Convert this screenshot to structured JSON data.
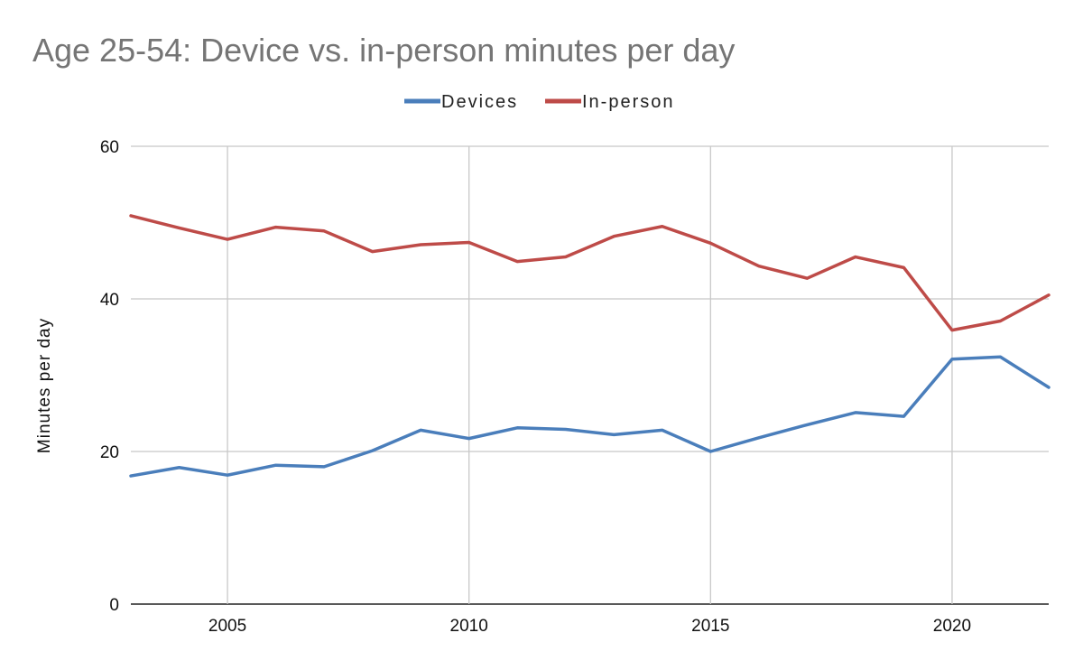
{
  "chart_data": {
    "type": "line",
    "title": "Age 25-54: Device vs. in-person minutes per day",
    "xlabel": "",
    "ylabel": "Minutes per day",
    "xlim": [
      2003,
      2022
    ],
    "ylim": [
      0,
      60
    ],
    "x_ticks": [
      2005,
      2010,
      2015,
      2020
    ],
    "y_ticks": [
      0,
      20,
      40,
      60
    ],
    "grid": true,
    "legend_position": "top-center",
    "x": [
      2003,
      2004,
      2005,
      2006,
      2007,
      2008,
      2009,
      2010,
      2011,
      2012,
      2013,
      2014,
      2015,
      2016,
      2017,
      2018,
      2019,
      2020,
      2021,
      2022
    ],
    "series": [
      {
        "name": "Devices",
        "color": "#4a7ebb",
        "values": [
          16.8,
          17.9,
          16.9,
          18.2,
          18.0,
          20.1,
          22.8,
          21.7,
          23.1,
          22.9,
          22.2,
          22.8,
          20.0,
          21.8,
          23.5,
          25.1,
          24.6,
          32.1,
          32.4,
          28.4
        ]
      },
      {
        "name": "In-person",
        "color": "#be4b48",
        "values": [
          50.9,
          49.3,
          47.8,
          49.4,
          48.9,
          46.2,
          47.1,
          47.4,
          44.9,
          45.5,
          48.2,
          49.5,
          47.3,
          44.3,
          42.7,
          45.5,
          44.1,
          35.9,
          37.1,
          40.5
        ]
      }
    ]
  }
}
